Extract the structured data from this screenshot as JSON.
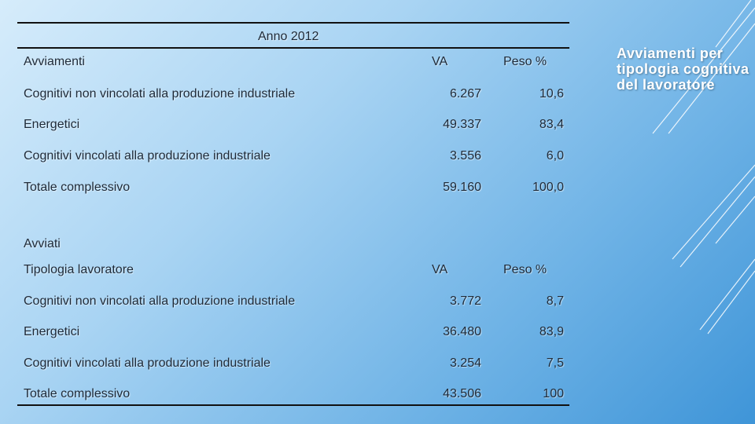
{
  "year_title": "Anno 2012",
  "side_title": "Avviamenti per tipologia cognitiva del lavoratore",
  "table1": {
    "header": {
      "label": "Avviamenti",
      "va": "VA",
      "peso": "Peso %"
    },
    "rows": [
      {
        "label": "Cognitivi  non vincolati alla produzione industriale",
        "va": "6.267",
        "peso": "10,6"
      },
      {
        "label": "Energetici",
        "va": "49.337",
        "peso": "83,4"
      },
      {
        "label": "Cognitivi vincolati alla produzione industriale",
        "va": "3.556",
        "peso": "6,0"
      },
      {
        "label": "Totale complessivo",
        "va": "59.160",
        "peso": "100,0"
      }
    ]
  },
  "table2": {
    "section": "Avviati",
    "header": {
      "label": "Tipologia lavoratore",
      "va": "VA",
      "peso": "Peso %"
    },
    "rows": [
      {
        "label": "Cognitivi  non vincolati alla produzione industriale",
        "va": "3.772",
        "peso": "8,7"
      },
      {
        "label": "Energetici",
        "va": "36.480",
        "peso": "83,9"
      },
      {
        "label": "Cognitivi vincolati alla produzione industriale",
        "va": "3.254",
        "peso": "7,5"
      },
      {
        "label": "Totale complessivo",
        "va": "43.506",
        "peso": "100"
      }
    ]
  }
}
